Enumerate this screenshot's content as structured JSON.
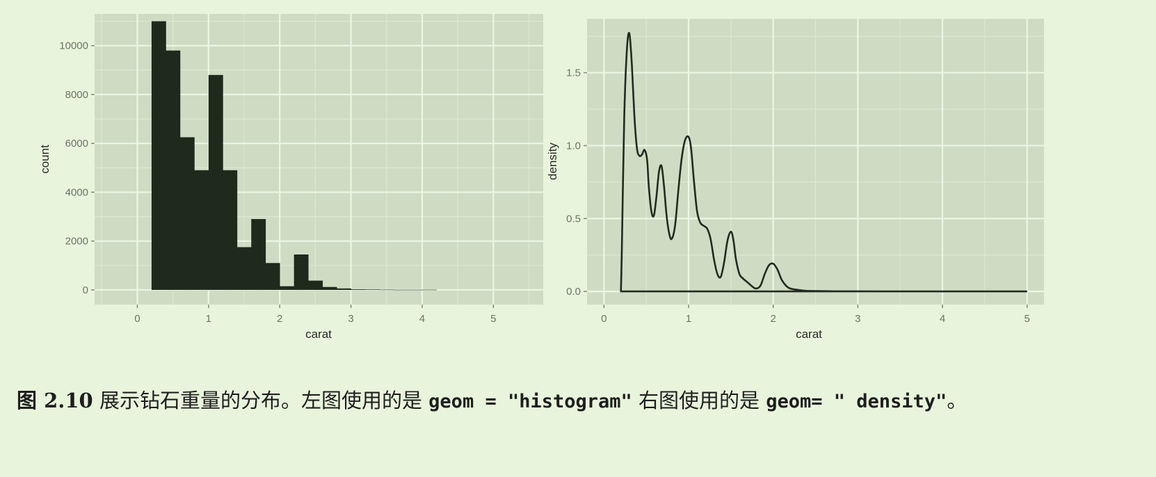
{
  "chart_data": [
    {
      "type": "bar",
      "title": "",
      "xlabel": "carat",
      "ylabel": "count",
      "xlim": [
        -0.6,
        5.7
      ],
      "ylim": [
        -600,
        11300
      ],
      "xticks": [
        0,
        1,
        2,
        3,
        4,
        5
      ],
      "xtick_labels": [
        "0",
        "1",
        "2",
        "3",
        "4",
        "5"
      ],
      "yticks": [
        0,
        2000,
        4000,
        6000,
        8000,
        10000
      ],
      "ytick_labels": [
        "0",
        "2000",
        "4000",
        "6000",
        "8000",
        "10000"
      ],
      "grid": true,
      "bins": [
        {
          "x0": 0.2,
          "x1": 0.4,
          "count": 11000
        },
        {
          "x0": 0.4,
          "x1": 0.6,
          "count": 9800
        },
        {
          "x0": 0.6,
          "x1": 0.8,
          "count": 6250
        },
        {
          "x0": 0.8,
          "x1": 1.0,
          "count": 4900
        },
        {
          "x0": 1.0,
          "x1": 1.2,
          "count": 8800
        },
        {
          "x0": 1.2,
          "x1": 1.4,
          "count": 4900
        },
        {
          "x0": 1.4,
          "x1": 1.6,
          "count": 1750
        },
        {
          "x0": 1.6,
          "x1": 1.8,
          "count": 2900
        },
        {
          "x0": 1.8,
          "x1": 2.0,
          "count": 1100
        },
        {
          "x0": 2.0,
          "x1": 2.2,
          "count": 150
        },
        {
          "x0": 2.2,
          "x1": 2.4,
          "count": 1450
        },
        {
          "x0": 2.4,
          "x1": 2.6,
          "count": 380
        },
        {
          "x0": 2.6,
          "x1": 2.8,
          "count": 120
        },
        {
          "x0": 2.8,
          "x1": 3.0,
          "count": 60
        },
        {
          "x0": 3.0,
          "x1": 3.2,
          "count": 25
        },
        {
          "x0": 3.2,
          "x1": 3.4,
          "count": 20
        },
        {
          "x0": 3.4,
          "x1": 3.6,
          "count": 10
        },
        {
          "x0": 3.6,
          "x1": 3.8,
          "count": 5
        },
        {
          "x0": 3.8,
          "x1": 4.0,
          "count": 5
        },
        {
          "x0": 4.0,
          "x1": 4.2,
          "count": 8
        }
      ]
    },
    {
      "type": "line",
      "title": "",
      "xlabel": "carat",
      "ylabel": "density",
      "xlim": [
        -0.2,
        5.2
      ],
      "ylim": [
        -0.09,
        1.87
      ],
      "xticks": [
        0,
        1,
        2,
        3,
        4,
        5
      ],
      "xtick_labels": [
        "0",
        "1",
        "2",
        "3",
        "4",
        "5"
      ],
      "yticks": [
        0,
        0.5,
        1,
        1.5
      ],
      "ytick_labels": [
        "0.0",
        "0.5",
        "1.0",
        "1.5"
      ],
      "grid": true,
      "x": [
        0.2,
        0.21,
        0.24,
        0.27,
        0.3,
        0.33,
        0.36,
        0.39,
        0.42,
        0.45,
        0.48,
        0.51,
        0.53,
        0.56,
        0.59,
        0.62,
        0.65,
        0.68,
        0.71,
        0.74,
        0.77,
        0.8,
        0.84,
        0.88,
        0.92,
        0.96,
        1.0,
        1.03,
        1.06,
        1.1,
        1.14,
        1.18,
        1.22,
        1.26,
        1.3,
        1.34,
        1.38,
        1.42,
        1.46,
        1.5,
        1.53,
        1.56,
        1.6,
        1.64,
        1.68,
        1.72,
        1.76,
        1.8,
        1.85,
        1.9,
        1.95,
        2.0,
        2.05,
        2.1,
        2.15,
        2.2,
        2.3,
        2.4,
        2.5,
        2.6,
        2.8,
        3.0,
        3.5,
        4.0,
        4.5,
        5.0
      ],
      "y": [
        0.0,
        0.25,
        1.2,
        1.65,
        1.77,
        1.55,
        1.2,
        0.98,
        0.93,
        0.94,
        0.97,
        0.9,
        0.72,
        0.55,
        0.52,
        0.65,
        0.82,
        0.86,
        0.72,
        0.52,
        0.4,
        0.36,
        0.45,
        0.7,
        0.92,
        1.04,
        1.06,
        0.98,
        0.78,
        0.55,
        0.47,
        0.45,
        0.43,
        0.36,
        0.22,
        0.12,
        0.1,
        0.2,
        0.35,
        0.41,
        0.35,
        0.22,
        0.12,
        0.09,
        0.07,
        0.05,
        0.03,
        0.02,
        0.04,
        0.12,
        0.18,
        0.19,
        0.15,
        0.08,
        0.04,
        0.02,
        0.01,
        0.004,
        0.003,
        0.002,
        0.001,
        0.001,
        0.0,
        0.0,
        0.0,
        0.0
      ]
    }
  ],
  "caption": {
    "figure_label": "图 2.10",
    "text_1": " 展示钻石重量的分布。左图使用的是 ",
    "code_1": "geom = \"histogram\"",
    "text_2": " 右图使用的是 ",
    "code_2": "geom= \" density\"",
    "text_3": "。"
  }
}
